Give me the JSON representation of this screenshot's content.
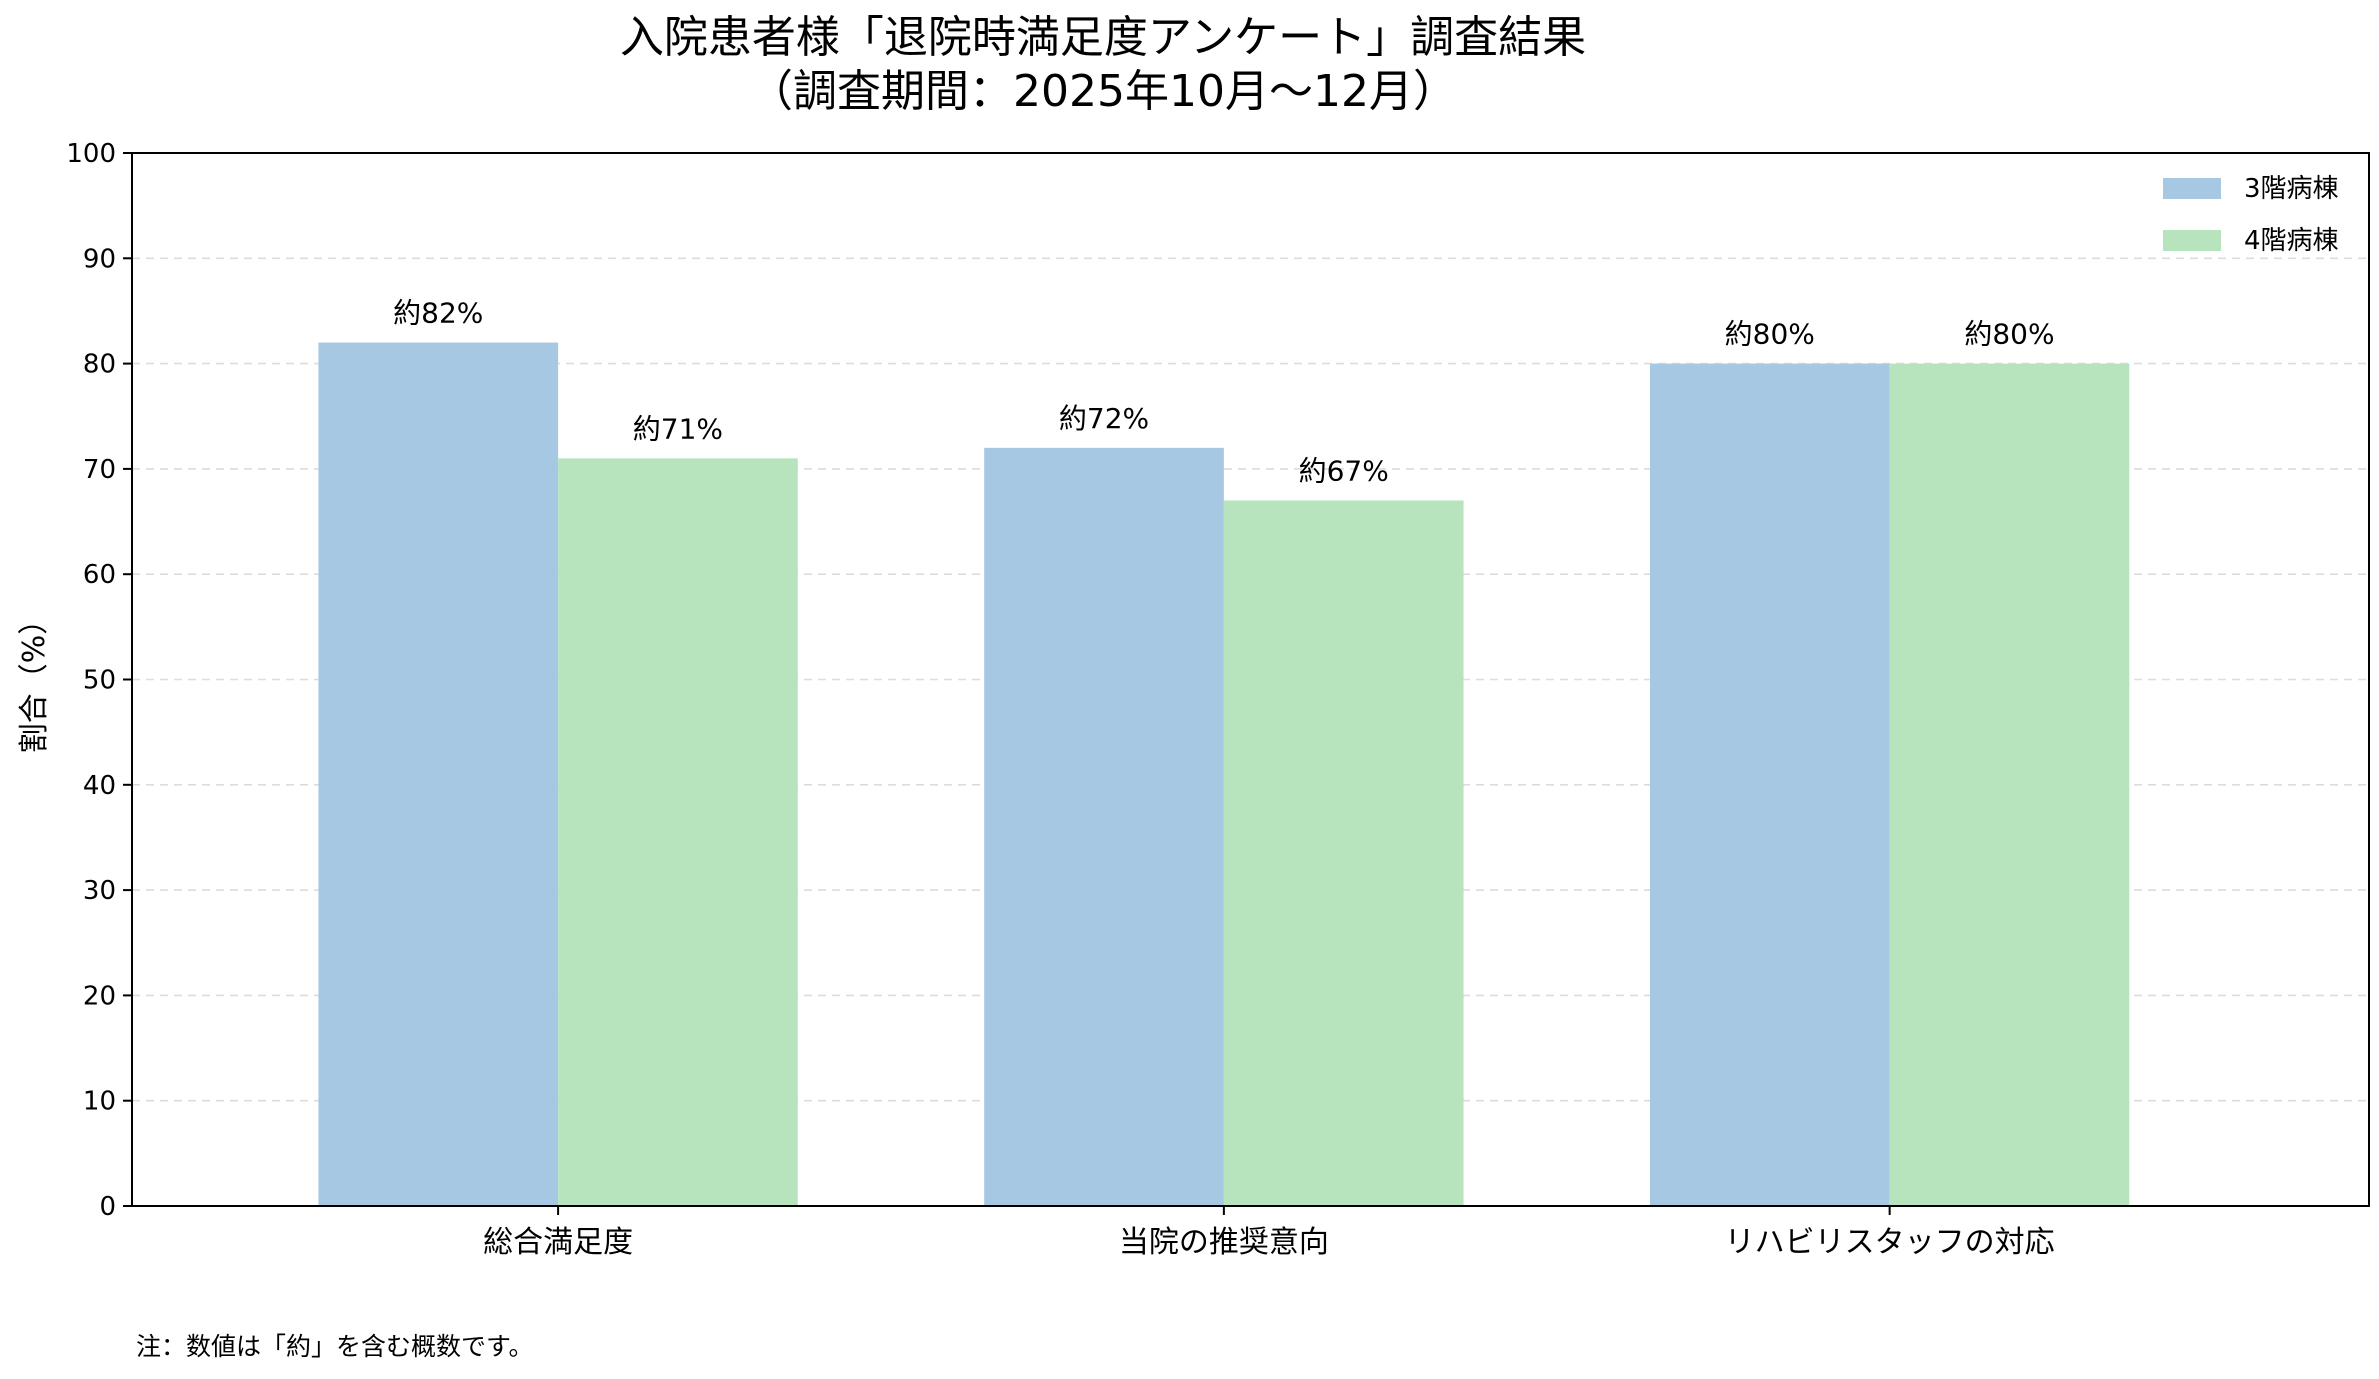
{
  "chart_data": {
    "type": "bar",
    "title": [
      "入院患者様「退院時満足度アンケート」調査結果",
      "（調査期間：2025年10月〜12月）"
    ],
    "xlabel": "",
    "ylabel": "割合（%）",
    "ylim": [
      0,
      100
    ],
    "yticks": [
      0,
      10,
      20,
      30,
      40,
      50,
      60,
      70,
      80,
      90,
      100
    ],
    "yticks_labels": [
      "0",
      "10",
      "20",
      "30",
      "40",
      "50",
      "60",
      "70",
      "80",
      "90",
      "100"
    ],
    "grid": "horizontal dashed",
    "legend_position": "top-right",
    "categories": [
      "総合満足度",
      "当院の推奨意向",
      "リハビリスタッフの対応"
    ],
    "series": [
      {
        "name": "3階病棟",
        "color": "#a6c8e2",
        "values": [
          82,
          72,
          80
        ],
        "labels": [
          "約82%",
          "約72%",
          "約80%"
        ]
      },
      {
        "name": "4階病棟",
        "color": "#b7e3bd",
        "values": [
          71,
          67,
          80
        ],
        "labels": [
          "約71%",
          "約67%",
          "約80%"
        ]
      }
    ],
    "footnote": "注：数値は「約」を含む概数です。"
  }
}
